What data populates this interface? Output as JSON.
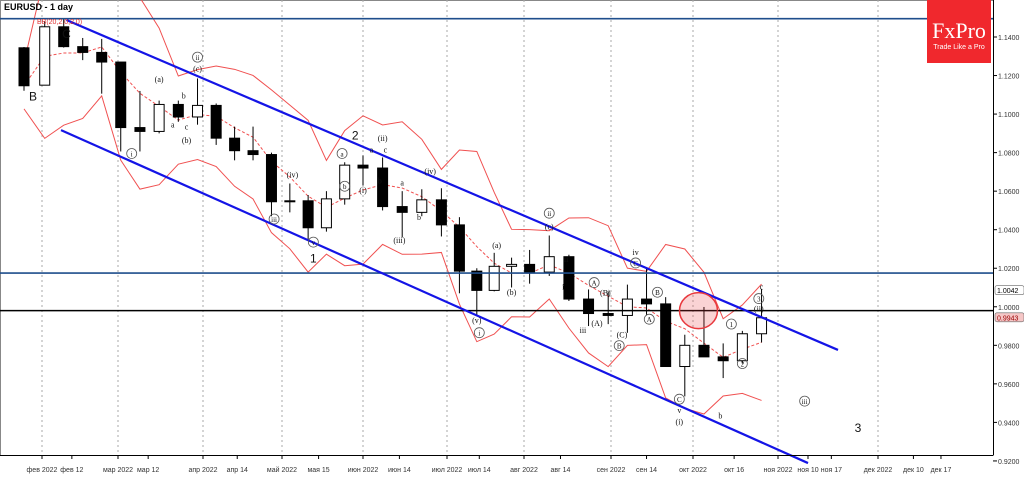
{
  "header": {
    "symbol_title": "EURUSD - 1 day",
    "indicator_label": "BB(20,2.0,2.0)"
  },
  "logo": {
    "brand": "FxPro",
    "tagline": "Trade Like a Pro",
    "color": "#f0282d"
  },
  "price_tags": {
    "ask": "1.0042",
    "last": "0.9943"
  },
  "chart_data": {
    "type": "candlestick",
    "timeframe": "1 day",
    "ylim": [
      0.915,
      1.159
    ],
    "y_ticks": [
      "1.1400",
      "1.1200",
      "1.1000",
      "1.0800",
      "1.0600",
      "1.0400",
      "1.0200",
      "1.0000",
      "0.9800",
      "0.9600",
      "0.9400",
      "0.9200"
    ],
    "x_ticks": [
      {
        "d": "2022-02-01",
        "label": "фев 2022"
      },
      {
        "d": "2022-02-12",
        "label": "фев 12"
      },
      {
        "d": "2022-03-01",
        "label": "мар 2022"
      },
      {
        "d": "2022-03-12",
        "label": "мар 12"
      },
      {
        "d": "2022-04-01",
        "label": "апр 2022"
      },
      {
        "d": "2022-04-14",
        "label": "апр 14"
      },
      {
        "d": "2022-05-01",
        "label": "май 2022"
      },
      {
        "d": "2022-05-15",
        "label": "мая 15"
      },
      {
        "d": "2022-06-01",
        "label": "июн 2022"
      },
      {
        "d": "2022-06-14",
        "label": "июн 14"
      },
      {
        "d": "2022-07-01",
        "label": "июл 2022"
      },
      {
        "d": "2022-07-14",
        "label": "июл 14"
      },
      {
        "d": "2022-08-01",
        "label": "авг 2022"
      },
      {
        "d": "2022-08-14",
        "label": "авг 14"
      },
      {
        "d": "2022-09-01",
        "label": "сен 2022"
      },
      {
        "d": "2022-09-14",
        "label": "сен 14"
      },
      {
        "d": "2022-10-01",
        "label": "окт 2022"
      },
      {
        "d": "2022-10-16",
        "label": "окт 16"
      },
      {
        "d": "2022-11-01",
        "label": "ноя 2022"
      },
      {
        "d": "2022-11-10",
        "label": "ноя 10"
      },
      {
        "d": "2022-11-17",
        "label": "ноя 17"
      },
      {
        "d": "2022-12-01",
        "label": "дек 2022"
      },
      {
        "d": "2022-12-10",
        "label": "дек 10"
      },
      {
        "d": "2022-12-17",
        "label": "дек 17"
      }
    ],
    "candles": [
      [
        "2022-01-24",
        1.1344,
        1.1348,
        1.1121,
        1.1147
      ],
      [
        "2022-01-31",
        1.115,
        1.1483,
        1.115,
        1.1453
      ],
      [
        "2022-02-07",
        1.1453,
        1.1495,
        1.1345,
        1.135
      ],
      [
        "2022-02-14",
        1.135,
        1.1395,
        1.128,
        1.132
      ],
      [
        "2022-02-21",
        1.132,
        1.139,
        1.1106,
        1.127
      ],
      [
        "2022-02-28",
        1.127,
        1.127,
        1.0806,
        1.093
      ],
      [
        "2022-03-07",
        1.093,
        1.112,
        1.0806,
        1.091
      ],
      [
        "2022-03-14",
        1.091,
        1.107,
        1.09,
        1.105
      ],
      [
        "2022-03-21",
        1.105,
        1.107,
        1.096,
        1.0985
      ],
      [
        "2022-03-28",
        1.0985,
        1.1185,
        1.0945,
        1.1045
      ],
      [
        "2022-04-04",
        1.1045,
        1.1055,
        1.084,
        1.0875
      ],
      [
        "2022-04-11",
        1.0875,
        1.0935,
        1.076,
        1.081
      ],
      [
        "2022-04-18",
        1.081,
        1.0935,
        1.076,
        1.079
      ],
      [
        "2022-04-25",
        1.079,
        1.08,
        1.047,
        1.0545
      ],
      [
        "2022-05-02",
        1.0545,
        1.064,
        1.049,
        1.055
      ],
      [
        "2022-05-09",
        1.055,
        1.058,
        1.035,
        1.041
      ],
      [
        "2022-05-16",
        1.041,
        1.06,
        1.039,
        1.056
      ],
      [
        "2022-05-23",
        1.056,
        1.075,
        1.053,
        1.0735
      ],
      [
        "2022-05-30",
        1.0735,
        1.0785,
        1.063,
        1.072
      ],
      [
        "2022-06-06",
        1.072,
        1.0775,
        1.05,
        1.052
      ],
      [
        "2022-06-13",
        1.052,
        1.06,
        1.036,
        1.049
      ],
      [
        "2022-06-20",
        1.049,
        1.061,
        1.047,
        1.0555
      ],
      [
        "2022-06-27",
        1.0555,
        1.0615,
        1.0365,
        1.0425
      ],
      [
        "2022-07-04",
        1.0425,
        1.0465,
        1.007,
        1.0185
      ],
      [
        "2022-07-11",
        1.0185,
        1.02,
        0.9952,
        1.0085
      ],
      [
        "2022-07-18",
        1.0085,
        1.028,
        1.008,
        1.021
      ],
      [
        "2022-07-25",
        1.021,
        1.0255,
        1.01,
        1.022
      ],
      [
        "2022-08-01",
        1.022,
        1.0295,
        1.012,
        1.018
      ],
      [
        "2022-08-08",
        1.018,
        1.037,
        1.016,
        1.026
      ],
      [
        "2022-08-15",
        1.026,
        1.027,
        1.003,
        1.004
      ],
      [
        "2022-08-22",
        1.004,
        1.009,
        0.99,
        0.9965
      ],
      [
        "2022-08-29",
        0.9965,
        1.008,
        0.991,
        0.9955
      ],
      [
        "2022-09-05",
        0.9955,
        1.0115,
        0.9865,
        1.004
      ],
      [
        "2022-09-12",
        1.004,
        1.0198,
        0.9955,
        1.0015
      ],
      [
        "2022-09-19",
        1.0015,
        1.005,
        0.969,
        0.969
      ],
      [
        "2022-09-26",
        0.969,
        0.9855,
        0.9535,
        0.98
      ],
      [
        "2022-10-03",
        0.98,
        0.9999,
        0.974,
        0.974
      ],
      [
        "2022-10-10",
        0.974,
        0.981,
        0.963,
        0.972
      ],
      [
        "2022-10-17",
        0.972,
        0.9875,
        0.9705,
        0.986
      ],
      [
        "2022-10-24",
        0.986,
        1.0093,
        0.9815,
        0.9943
      ]
    ],
    "horizontal_levels": [
      {
        "price": 1.1495,
        "color": "#1f4e8c"
      },
      {
        "price": 1.0175,
        "color": "#1f4e8c"
      },
      {
        "price": 0.998,
        "color": "#000000"
      }
    ],
    "channel_lines": [
      {
        "from": [
          "2022-02-10",
          1.1488
        ],
        "to": [
          "2022-11-19",
          0.9776
        ],
        "color": "#1414e6"
      },
      {
        "from": [
          "2022-02-08",
          1.0917
        ],
        "to": [
          "2022-11-10",
          0.9189
        ],
        "color": "#1414e6"
      }
    ],
    "highlight_ellipse": {
      "d": "2022-10-03",
      "price": 0.998,
      "color": "#e8383d"
    },
    "bollinger_color": "#f05050",
    "wave_labels": [
      {
        "d": "2022-01-29",
        "p": 1.109,
        "t": "B",
        "big": true
      },
      {
        "d": "2022-02-10",
        "p": 1.153,
        "t": "C",
        "big": true
      },
      {
        "d": "2022-03-30",
        "p": 1.128,
        "t": "ii",
        "c": true
      },
      {
        "d": "2022-03-30",
        "p": 1.122,
        "t": "(c)"
      },
      {
        "d": "2022-03-16",
        "p": 1.1166,
        "t": "(a)"
      },
      {
        "d": "2022-03-25",
        "p": 1.108,
        "t": "b"
      },
      {
        "d": "2022-03-21",
        "p": 1.093,
        "t": "a"
      },
      {
        "d": "2022-03-26",
        "p": 1.092,
        "t": "c"
      },
      {
        "d": "2022-03-26",
        "p": 1.085,
        "t": "(b)"
      },
      {
        "d": "2022-03-06",
        "p": 1.078,
        "t": "i",
        "c": true
      },
      {
        "d": "2022-05-05",
        "p": 1.067,
        "t": "(iv)"
      },
      {
        "d": "2022-04-28",
        "p": 1.044,
        "t": "iii",
        "c": true
      },
      {
        "d": "2022-05-13",
        "p": 1.032,
        "t": "v",
        "c": true
      },
      {
        "d": "2022-05-13",
        "p": 1.025,
        "t": "1",
        "big": true
      },
      {
        "d": "2022-05-29",
        "p": 1.089,
        "t": "2",
        "big": true
      },
      {
        "d": "2022-05-24",
        "p": 1.078,
        "t": "a",
        "c": true
      },
      {
        "d": "2022-05-25",
        "p": 1.061,
        "t": "b",
        "c": true
      },
      {
        "d": "2022-06-01",
        "p": 1.059,
        "t": "(i)"
      },
      {
        "d": "2022-06-04",
        "p": 1.08,
        "t": "a"
      },
      {
        "d": "2022-06-08",
        "p": 1.086,
        "t": "(ii)"
      },
      {
        "d": "2022-06-09",
        "p": 1.08,
        "t": "c"
      },
      {
        "d": "2022-06-07",
        "p": 1.064,
        "t": "b"
      },
      {
        "d": "2022-06-14",
        "p": 1.033,
        "t": "(iii)"
      },
      {
        "d": "2022-06-15",
        "p": 1.063,
        "t": "a"
      },
      {
        "d": "2022-06-21",
        "p": 1.045,
        "t": "b"
      },
      {
        "d": "2022-06-25",
        "p": 1.069,
        "t": "(iv)"
      },
      {
        "d": "2022-07-13",
        "p": 0.9915,
        "t": "(v)"
      },
      {
        "d": "2022-07-14",
        "p": 0.985,
        "t": "i",
        "c": true
      },
      {
        "d": "2022-07-21",
        "p": 1.0305,
        "t": "(a)"
      },
      {
        "d": "2022-07-27",
        "p": 1.006,
        "t": "(b)"
      },
      {
        "d": "2022-08-10",
        "p": 1.047,
        "t": "ii",
        "c": true
      },
      {
        "d": "2022-08-10",
        "p": 1.04,
        "t": "(c)"
      },
      {
        "d": "2022-08-16",
        "p": 1.0232,
        "t": "ii"
      },
      {
        "d": "2022-08-15",
        "p": 1.009,
        "t": "i"
      },
      {
        "d": "2022-08-22",
        "p": 0.9864,
        "t": "iii"
      },
      {
        "d": "2022-08-26",
        "p": 1.011,
        "t": "A",
        "c": true
      },
      {
        "d": "2022-08-27",
        "p": 0.99,
        "t": "(A)"
      },
      {
        "d": "2022-08-30",
        "p": 1.009,
        "t": "(B)"
      },
      {
        "d": "2022-09-05",
        "p": 0.984,
        "t": "(C)"
      },
      {
        "d": "2022-09-04",
        "p": 0.979,
        "t": "B",
        "c": true
      },
      {
        "d": "2022-09-10",
        "p": 1.0269,
        "t": "iv"
      },
      {
        "d": "2022-09-10",
        "p": 1.0217,
        "t": "C",
        "c": true
      },
      {
        "d": "2022-09-15",
        "p": 0.992,
        "t": "A",
        "c": true
      },
      {
        "d": "2022-09-18",
        "p": 1.006,
        "t": "B",
        "c": true
      },
      {
        "d": "2022-09-26",
        "p": 0.9505,
        "t": "C",
        "c": true
      },
      {
        "d": "2022-09-26",
        "p": 0.945,
        "t": "v"
      },
      {
        "d": "2022-09-26",
        "p": 0.939,
        "t": "(i)"
      },
      {
        "d": "2022-10-11",
        "p": 0.942,
        "t": "b"
      },
      {
        "d": "2022-10-15",
        "p": 0.9895,
        "t": "1",
        "c": true
      },
      {
        "d": "2022-10-19",
        "p": 0.969,
        "t": "2",
        "c": true
      },
      {
        "d": "2022-10-25",
        "p": 1.0027,
        "t": "3",
        "c": true
      },
      {
        "d": "2022-10-26",
        "p": 1.009,
        "t": "c"
      },
      {
        "d": "2022-10-25",
        "p": 1.014,
        "t": "(ii)"
      },
      {
        "d": "2022-11-09",
        "p": 0.9495,
        "t": "iii",
        "c": true
      },
      {
        "d": "2022-11-25",
        "p": 0.937,
        "t": "3",
        "big": true
      }
    ]
  }
}
